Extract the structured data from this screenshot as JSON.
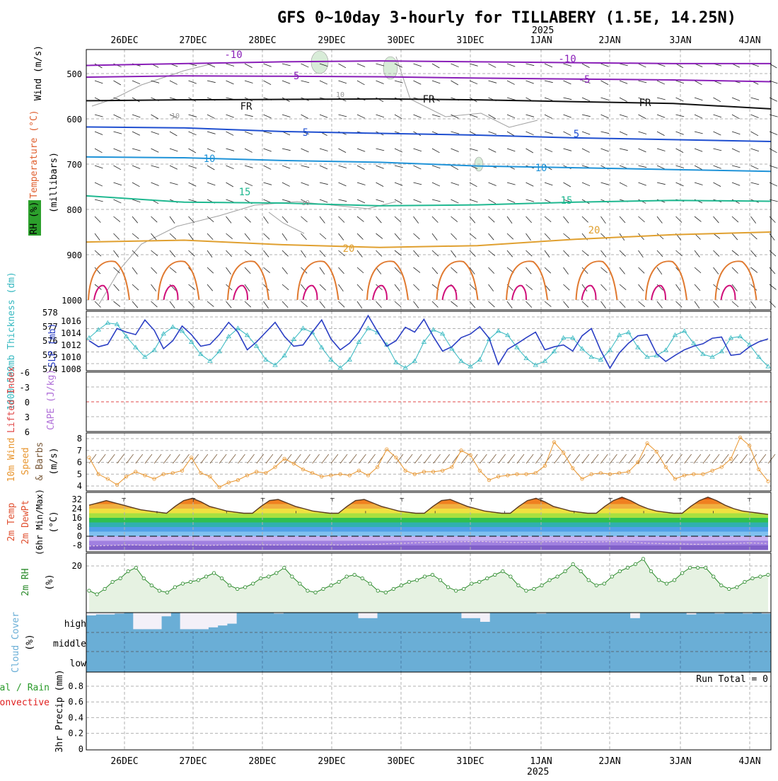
{
  "title": "GFS 0~10day 3-hourly for TILLABERY (1.5E, 14.25N)",
  "year_label": "2025",
  "dates": [
    "26DEC",
    "27DEC",
    "28DEC",
    "29DEC",
    "30DEC",
    "31DEC",
    "1JAN",
    "2JAN",
    "3JAN",
    "4JAN"
  ],
  "colors": {
    "grid": "#b0b0b0",
    "slp": "#2b3fc4",
    "thickness": "#35b8c0",
    "wind10": "#e8952e",
    "rh2m": "#2a8a2a",
    "cloud": "#6aaed6",
    "cape_line": "#e04848",
    "precip_total": "#2a9a2a",
    "precip_conv": "#e02020"
  },
  "panels": {
    "upper": {
      "ylabel_wind": "Wind (m/s)",
      "ylabel_temp": "Temperature (°C)",
      "ylabel_rh": "RH (%)",
      "ylabel_mb": "(millibars)",
      "contour_labels": [
        "-10",
        "-5",
        "FR",
        "5",
        "10",
        "15",
        "20",
        "10",
        "10",
        "10",
        "-10",
        "-5",
        "FR",
        "FR",
        "5",
        "10",
        "15",
        "20"
      ],
      "isotherms": [
        {
          "label": "-10",
          "color": "#8a1fb8",
          "mb": [
            482,
            478,
            474,
            472,
            474,
            476,
            478,
            478
          ]
        },
        {
          "label": "-5",
          "color": "#8a1fb8",
          "mb": [
            508,
            505,
            506,
            507,
            510,
            512,
            514,
            518
          ]
        },
        {
          "label": "FR",
          "color": "#111111",
          "mb": [
            560,
            558,
            557,
            556,
            558,
            562,
            566,
            578
          ]
        },
        {
          "label": "5",
          "color": "#1f4fd0",
          "mb": [
            618,
            620,
            628,
            632,
            636,
            642,
            646,
            650
          ]
        },
        {
          "label": "10",
          "color": "#1f93d8",
          "mb": [
            684,
            686,
            692,
            696,
            704,
            708,
            712,
            716
          ]
        },
        {
          "label": "15",
          "color": "#1fb890",
          "mb": [
            770,
            784,
            786,
            792,
            790,
            784,
            780,
            782
          ]
        },
        {
          "label": "20",
          "color": "#e0a030",
          "mb": [
            872,
            868,
            878,
            884,
            880,
            866,
            856,
            850
          ]
        }
      ],
      "yticks": [
        "500",
        "600",
        "700",
        "800",
        "900",
        "1000"
      ]
    },
    "slp": {
      "ylabel_thick": "1000-500mb Thickness (dm)",
      "ylabel_slp": "SLP (mb)",
      "left_ticks": [
        "578",
        "577",
        "576",
        "575",
        "574"
      ],
      "right_ticks": [
        "1016",
        "1014",
        "1012",
        "1010",
        "1008"
      ],
      "slp_values": [
        1012.8,
        1011.8,
        1012.2,
        1014.8,
        1014.2,
        1013.8,
        1016.2,
        1014.5,
        1011.5,
        1012.8,
        1015.2,
        1013.8,
        1011.9,
        1012.2,
        1013.8,
        1015.8,
        1014.2,
        1011.3,
        1012.6,
        1014.2,
        1015.8,
        1013.5,
        1011.9,
        1012.1,
        1014.2,
        1016.2,
        1013.1,
        1011.3,
        1012.4,
        1014.2,
        1016.9,
        1014.3,
        1011.9,
        1012.8,
        1015.0,
        1014.2,
        1016.3,
        1013.5,
        1011.1,
        1011.8,
        1013.3,
        1013.9,
        1015.1,
        1013.2,
        1008.9,
        1011.4,
        1012.3,
        1013.3,
        1014.2,
        1011.3,
        1011.8,
        1012.1,
        1011.1,
        1013.6,
        1014.8,
        1011.2,
        1008.3,
        1010.8,
        1012.4,
        1013.6,
        1013.8,
        1010.7,
        1009.4,
        1010.4,
        1011.3,
        1011.9,
        1012.3,
        1013.2,
        1013.4,
        1010.4,
        1010.6,
        1011.8,
        1012.6,
        1013.1
      ],
      "thick_values": [
        576.2,
        576.8,
        577.3,
        577.2,
        576.3,
        575.5,
        574.8,
        575.3,
        576.5,
        577.0,
        576.7,
        575.9,
        575.0,
        574.5,
        575.2,
        576.3,
        576.9,
        576.4,
        575.6,
        574.6,
        574.2,
        574.9,
        576.1,
        576.9,
        576.6,
        575.5,
        574.6,
        574.0,
        574.6,
        575.9,
        576.9,
        576.6,
        575.7,
        574.4,
        574.0,
        574.5,
        575.9,
        576.8,
        576.5,
        575.4,
        574.5,
        574.1,
        574.6,
        576.1,
        576.7,
        576.4,
        575.5,
        574.7,
        574.2,
        574.5,
        575.2,
        576.2,
        576.2,
        575.4,
        574.8,
        574.6,
        575.3,
        576.4,
        576.6,
        575.5,
        574.8,
        574.9,
        575.3,
        576.4,
        576.7,
        575.8,
        575.0,
        574.8,
        575.2,
        576.2,
        576.3,
        575.7,
        574.8,
        574.1
      ]
    },
    "cape": {
      "ylabel_li": "Lifted Index",
      "ylabel_cape": "CAPE (J/kg)",
      "yticks": [
        "-6",
        "-3",
        "0",
        "3",
        "6"
      ],
      "li_zero": 0
    },
    "wind10": {
      "ylabel": "10m Wind Speed & Barbs (m/s)",
      "yticks": [
        "8",
        "7",
        "6",
        "5",
        "4"
      ],
      "values": [
        6.4,
        5.0,
        4.6,
        4.1,
        4.8,
        5.2,
        4.9,
        4.6,
        5.0,
        5.1,
        5.3,
        6.4,
        5.1,
        4.8,
        3.9,
        4.3,
        4.5,
        4.9,
        5.2,
        5.1,
        5.6,
        6.3,
        5.9,
        5.4,
        5.1,
        4.8,
        4.9,
        5.0,
        4.9,
        5.3,
        4.9,
        5.6,
        7.1,
        6.4,
        5.3,
        5.0,
        5.2,
        5.2,
        5.3,
        5.6,
        7.0,
        6.6,
        5.3,
        4.5,
        4.8,
        4.9,
        5.0,
        5.0,
        5.1,
        5.7,
        7.7,
        6.8,
        5.5,
        4.6,
        5.0,
        5.1,
        5.0,
        5.1,
        5.2,
        6.0,
        7.6,
        6.9,
        5.6,
        4.6,
        4.9,
        5.0,
        5.0,
        5.3,
        5.6,
        6.3,
        8.1,
        7.4,
        5.4,
        4.4
      ]
    },
    "temp": {
      "ylabel": "2m Temp 2m DewPt (6hr Min/Max) (°C)",
      "yticks": [
        "32",
        "24",
        "16",
        "8",
        "0",
        "-8"
      ],
      "temp_values": [
        27,
        29,
        31,
        29,
        27,
        25,
        23,
        22,
        21,
        20,
        26,
        31,
        33,
        30,
        26,
        24,
        22,
        21,
        20,
        20,
        26,
        31,
        32,
        29,
        26,
        24,
        22,
        21,
        20,
        20,
        26,
        31,
        32,
        29,
        26,
        24,
        22,
        21,
        20,
        20,
        26,
        31,
        32,
        29,
        26,
        24,
        22,
        21,
        20,
        20,
        26,
        31,
        33,
        30,
        26,
        24,
        22,
        21,
        20,
        20,
        26,
        31,
        34,
        31,
        27,
        24,
        22,
        21,
        20,
        20,
        26,
        31,
        34,
        31,
        27,
        24,
        22,
        21,
        20,
        19
      ],
      "dew_values": [
        -8.5,
        -8.3,
        -8.0,
        -7.8,
        -7.6,
        -7.6,
        -7.8,
        -7.9,
        -7.6,
        -7.4,
        -7.5,
        -7.6,
        -7.8,
        -7.9,
        -7.7,
        -7.5,
        -7.4,
        -7.3,
        -7.4,
        -7.5,
        -7.6,
        -7.5,
        -7.4,
        -7.3,
        -7.4,
        -7.5,
        -7.5,
        -7.6,
        -7.4,
        -7.2,
        -7.2,
        -7.0,
        -6.6,
        -6.3,
        -6.0,
        -5.7,
        -5.5,
        -5.2,
        -5.0,
        -4.8,
        -4.8,
        -4.6,
        -4.5,
        -4.8,
        -5.1,
        -5.3,
        -5.5,
        -5.3,
        -5.0,
        -4.8,
        -4.7,
        -4.9,
        -5.2,
        -5.3,
        -5.0,
        -4.9,
        -4.7,
        -4.8,
        -5.0,
        -5.6,
        -6.0,
        -6.2,
        -6.5,
        -6.6,
        -6.8,
        -7.0,
        -7.0,
        -6.8,
        -6.6,
        -6.4,
        -6.0,
        -5.8,
        -6.0,
        -6.3
      ]
    },
    "rh": {
      "ylabel": "2m RH (%)",
      "yticks": [
        "20"
      ],
      "values": [
        6,
        4,
        7,
        11,
        13,
        17,
        19,
        13,
        9,
        6,
        5,
        8,
        10,
        11,
        12,
        14,
        16,
        13,
        9,
        7,
        8,
        10,
        13,
        14,
        16,
        19,
        14,
        10,
        6,
        5,
        7,
        9,
        11,
        14,
        15,
        13,
        10,
        6,
        5,
        7,
        9,
        11,
        12,
        14,
        15,
        12,
        8,
        6,
        7,
        10,
        11,
        13,
        15,
        17,
        14,
        9,
        6,
        7,
        9,
        12,
        14,
        17,
        21,
        17,
        12,
        9,
        10,
        14,
        17,
        19,
        21,
        24,
        17,
        12,
        10,
        12,
        16,
        19,
        19,
        19,
        14,
        9,
        7,
        8,
        11,
        13,
        14,
        15
      ]
    },
    "cloud": {
      "ylabel": "Cloud Cover (%)",
      "levels": [
        "high",
        "middle",
        "low"
      ],
      "high_gaps": [
        0.15,
        0.1,
        0.1,
        0.05,
        0,
        0.9,
        0.9,
        0.9,
        0.2,
        0,
        0.9,
        0.9,
        0.9,
        0.8,
        0.7,
        0.6,
        0,
        0,
        0,
        0,
        0.05,
        0,
        0,
        0,
        0,
        0,
        0,
        0,
        0,
        0.3,
        0.3,
        0,
        0,
        0,
        0,
        0,
        0,
        0,
        0,
        0,
        0.3,
        0.3,
        0.5,
        0,
        0,
        0,
        0,
        0,
        0.05,
        0,
        0,
        0,
        0,
        0,
        0,
        0,
        0,
        0,
        0.3,
        0,
        0,
        0,
        0,
        0,
        0.1,
        0,
        0,
        0.05,
        0,
        0,
        0.05,
        0,
        0.05
      ]
    },
    "precip": {
      "ylabel": "3hr Precip (mm)",
      "legend_total": "Total / Rain",
      "legend_conv": "Convective",
      "run_total": "Run Total = 0",
      "yticks": [
        "0.8",
        "0.6",
        "0.4",
        "0.2",
        "0"
      ]
    }
  }
}
